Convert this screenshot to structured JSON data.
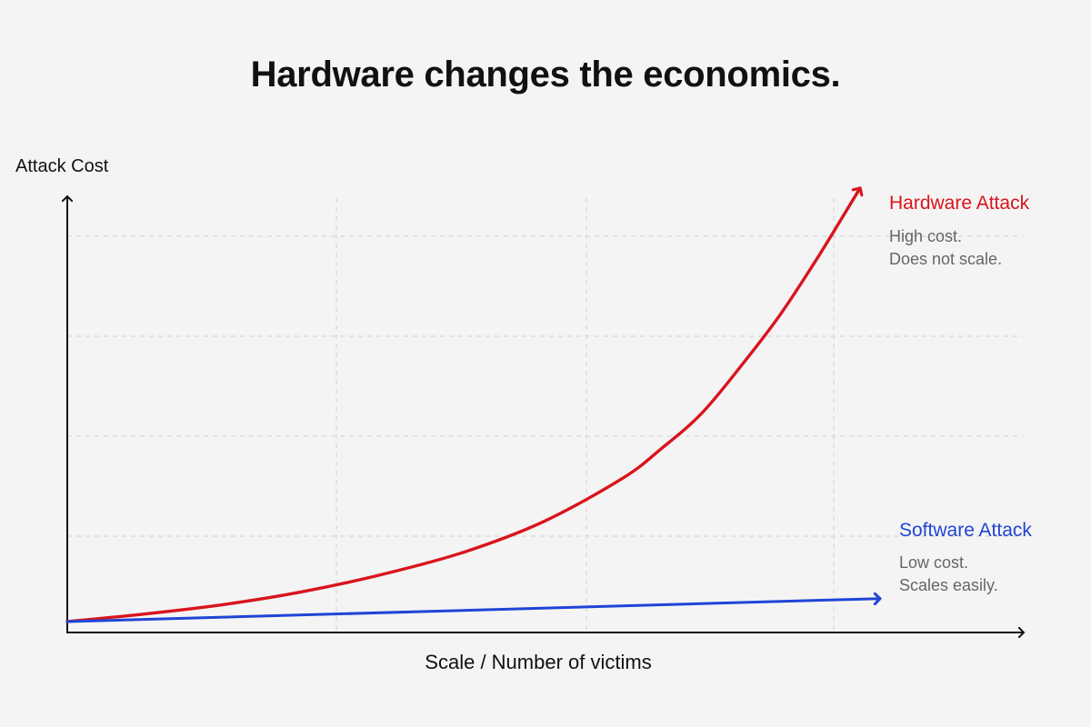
{
  "chart_data": {
    "type": "line",
    "title": "Hardware changes the economics.",
    "xlabel": "Scale / Number of victims",
    "ylabel": "Attack Cost",
    "grid": true,
    "x_ticks_labeled": false,
    "y_ticks_labeled": false,
    "xlim": [
      0,
      1
    ],
    "ylim": [
      0,
      1
    ],
    "series": [
      {
        "name": "Hardware Attack",
        "note": [
          "High cost.",
          "Does not scale."
        ],
        "color": "#d9141c",
        "curve": "exponential",
        "x": [
          0,
          0.1,
          0.2,
          0.3,
          0.4,
          0.5,
          0.6,
          0.7,
          0.75,
          0.8,
          0.85,
          0.9,
          0.95,
          1.0
        ],
        "y": [
          0,
          0.018,
          0.04,
          0.07,
          0.11,
          0.16,
          0.23,
          0.33,
          0.4,
          0.48,
          0.59,
          0.71,
          0.85,
          1.0
        ]
      },
      {
        "name": "Software Attack",
        "note": [
          "Low cost.",
          "Scales easily."
        ],
        "color": "#1f45d6",
        "curve": "linear",
        "x": [
          0,
          1.0
        ],
        "y": [
          0,
          0.053
        ]
      }
    ]
  }
}
